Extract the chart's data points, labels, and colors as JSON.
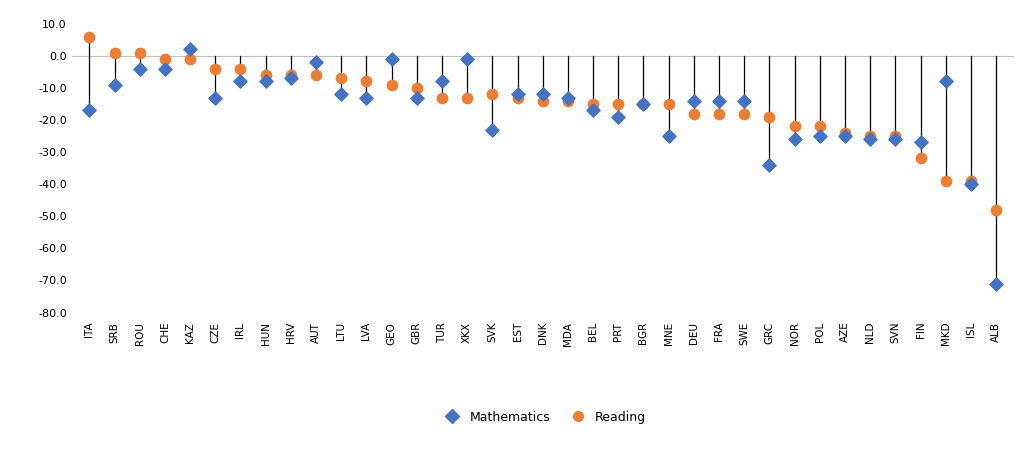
{
  "countries": [
    "ITA",
    "SRB",
    "ROU",
    "CHE",
    "KAZ",
    "CZE",
    "IRL",
    "HUN",
    "HRV",
    "AUT",
    "LTU",
    "LVA",
    "GEO",
    "GBR",
    "TUR",
    "XKX",
    "SVK",
    "EST",
    "DNK",
    "MDA",
    "BEL",
    "PRT",
    "BGR",
    "MNE",
    "DEU",
    "FRA",
    "SWE",
    "GRC",
    "NOR",
    "POL",
    "AZE",
    "NLD",
    "SVN",
    "FIN",
    "MKD",
    "ISL",
    "ALB"
  ],
  "math": [
    -17,
    -9,
    -4,
    -4,
    2,
    -13,
    -8,
    -8,
    -7,
    -2,
    -12,
    -13,
    -1,
    -13,
    -8,
    -1,
    -23,
    -12,
    -12,
    -13,
    -17,
    -19,
    -15,
    -25,
    -14,
    -14,
    -14,
    -34,
    -26,
    -25,
    -25,
    -26,
    -26,
    -27,
    -8,
    -40,
    -71
  ],
  "reading": [
    6,
    1,
    1,
    -1,
    -1,
    -4,
    -4,
    -6,
    -6,
    -6,
    -7,
    -8,
    -9,
    -10,
    -13,
    -13,
    -12,
    -13,
    -14,
    -14,
    -15,
    -15,
    -15,
    -15,
    -18,
    -18,
    -18,
    -19,
    -22,
    -22,
    -24,
    -25,
    -25,
    -32,
    -39,
    -39,
    -48
  ],
  "math_color": "#4472c4",
  "reading_color": "#ed7d31",
  "ylim": [
    -82,
    13
  ],
  "ytick_vals": [
    10.0,
    0.0,
    -10.0,
    -20.0,
    -30.0,
    -40.0,
    -50.0,
    -60.0,
    -70.0,
    -80.0
  ],
  "ytick_labels": [
    "10.0",
    "0.0",
    "-10.0",
    "-20.0",
    "-30.0",
    "-40.0",
    "-50.0",
    "-60.0",
    "-70.0",
    "-80.0"
  ],
  "background_color": "#ffffff",
  "legend_math": "Mathematics",
  "legend_reading": "Reading",
  "zero_line_color": "#c0c0c0",
  "connector_color": "black"
}
